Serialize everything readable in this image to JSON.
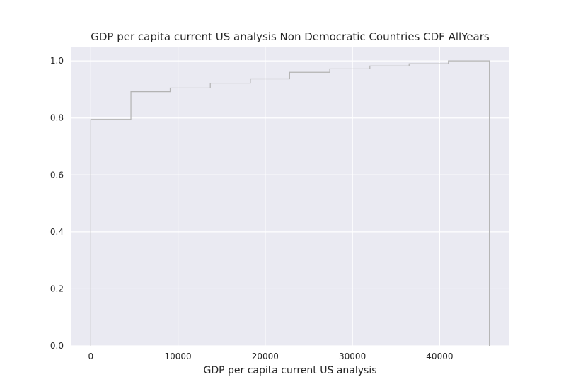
{
  "chart_data": {
    "type": "line",
    "title": "GDP per capita current US analysis Non Democratic Countries CDF AllYears",
    "xlabel": "GDP per capita current US analysis",
    "ylabel": "",
    "xlim": [
      -2300,
      48000
    ],
    "ylim": [
      0,
      1.05
    ],
    "xticks": [
      0,
      10000,
      20000,
      30000,
      40000
    ],
    "yticks": [
      0.0,
      0.2,
      0.4,
      0.6,
      0.8,
      1.0
    ],
    "xtick_labels": [
      "0",
      "10000",
      "20000",
      "30000",
      "40000"
    ],
    "ytick_labels": [
      "0.0",
      "0.2",
      "0.4",
      "0.6",
      "0.8",
      "1.0"
    ],
    "grid": true,
    "background_color": "#eaeaf2",
    "line_color": "#b3b3b3",
    "series": [
      {
        "step": "post",
        "points": [
          [
            0,
            0.0
          ],
          [
            0,
            0.795
          ],
          [
            4600,
            0.795
          ],
          [
            4600,
            0.892
          ],
          [
            9100,
            0.892
          ],
          [
            9100,
            0.905
          ],
          [
            13700,
            0.905
          ],
          [
            13700,
            0.922
          ],
          [
            18300,
            0.922
          ],
          [
            18300,
            0.937
          ],
          [
            22800,
            0.937
          ],
          [
            22800,
            0.96
          ],
          [
            27400,
            0.96
          ],
          [
            27400,
            0.972
          ],
          [
            32000,
            0.972
          ],
          [
            32000,
            0.982
          ],
          [
            36500,
            0.982
          ],
          [
            36500,
            0.99
          ],
          [
            41000,
            0.99
          ],
          [
            41000,
            1.0
          ],
          [
            45700,
            1.0
          ],
          [
            45700,
            0.0
          ]
        ]
      }
    ]
  }
}
